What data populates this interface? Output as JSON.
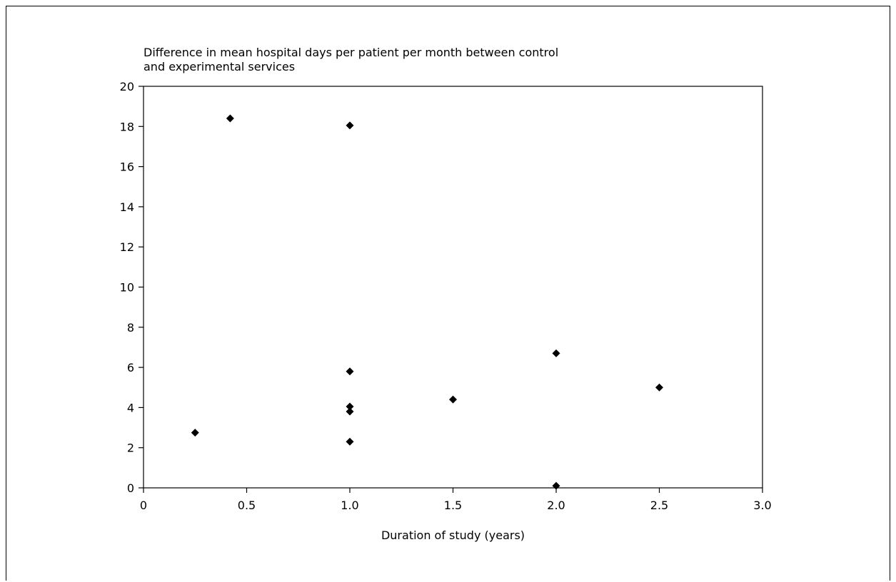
{
  "chart_data": {
    "type": "scatter",
    "title": "",
    "ylabel": "Difference in mean hospital days per patient per month between control and experimental services",
    "ylabel_lines": [
      "Difference in mean hospital days per patient per month between control",
      "and experimental services"
    ],
    "xlabel": "Duration of study (years)",
    "xlim": [
      0,
      3.0
    ],
    "ylim": [
      0,
      20
    ],
    "x_ticks": [
      0,
      0.5,
      1.0,
      1.5,
      2.0,
      2.5,
      3.0
    ],
    "x_tick_labels": [
      "0",
      "0.5",
      "1.0",
      "1.5",
      "2.0",
      "2.5",
      "3.0"
    ],
    "y_ticks": [
      0,
      2,
      4,
      6,
      8,
      10,
      12,
      14,
      16,
      18,
      20
    ],
    "y_tick_labels": [
      "0",
      "2",
      "4",
      "6",
      "8",
      "10",
      "12",
      "14",
      "16",
      "18",
      "20"
    ],
    "grid": false,
    "legend": "none",
    "marker": "diamond",
    "marker_color": "#000000",
    "series": [
      {
        "points": [
          {
            "x": 0.25,
            "y": 2.75
          },
          {
            "x": 0.42,
            "y": 18.4
          },
          {
            "x": 1.0,
            "y": 18.05
          },
          {
            "x": 1.0,
            "y": 5.8
          },
          {
            "x": 1.0,
            "y": 4.05
          },
          {
            "x": 1.0,
            "y": 3.8
          },
          {
            "x": 1.0,
            "y": 2.3
          },
          {
            "x": 1.5,
            "y": 4.4
          },
          {
            "x": 2.0,
            "y": 6.7
          },
          {
            "x": 2.0,
            "y": 0.1
          },
          {
            "x": 2.5,
            "y": 5.0
          }
        ]
      }
    ]
  }
}
